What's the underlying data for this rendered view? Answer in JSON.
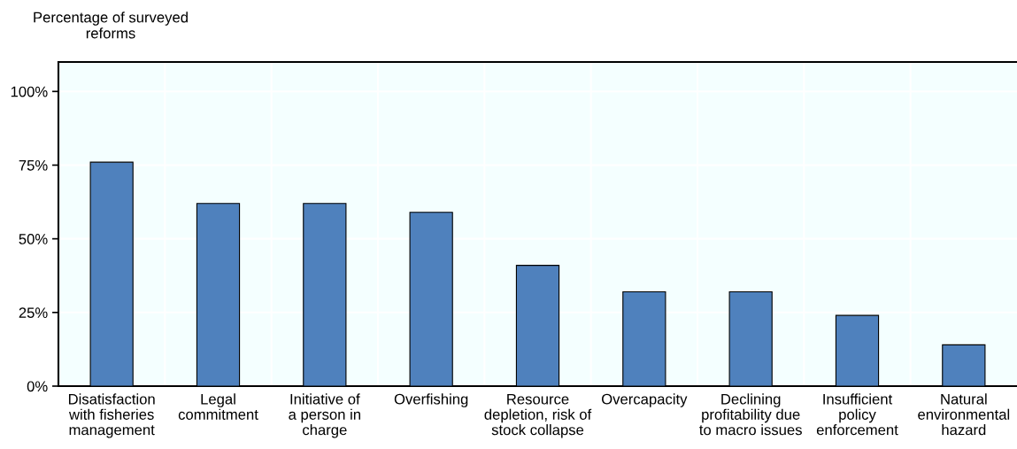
{
  "chart_data": {
    "type": "bar",
    "ylabel": "Percentage of surveyed\nreforms",
    "categories": [
      "Disatisfaction\nwith fisheries\nmanagement",
      "Legal\ncommitment",
      "Initiative of\na person in\ncharge",
      "Overfishing",
      "Resource\ndepletion, risk of\nstock collapse",
      "Overcapacity",
      "Declining\nprofitability due\nto macro issues",
      "Insufficient\npolicy\nenforcement",
      "Natural\nenvironmental\nhazard"
    ],
    "values": [
      76,
      62,
      62,
      59,
      41,
      32,
      32,
      24,
      14
    ],
    "color": "#4f81bd",
    "ylim": [
      0,
      110
    ],
    "yticks": [
      {
        "value": 0,
        "label": "0%"
      },
      {
        "value": 25,
        "label": "25%"
      },
      {
        "value": 50,
        "label": "50%"
      },
      {
        "value": 75,
        "label": "75%"
      },
      {
        "value": 100,
        "label": "100%"
      }
    ],
    "grid": true,
    "legend": false
  }
}
